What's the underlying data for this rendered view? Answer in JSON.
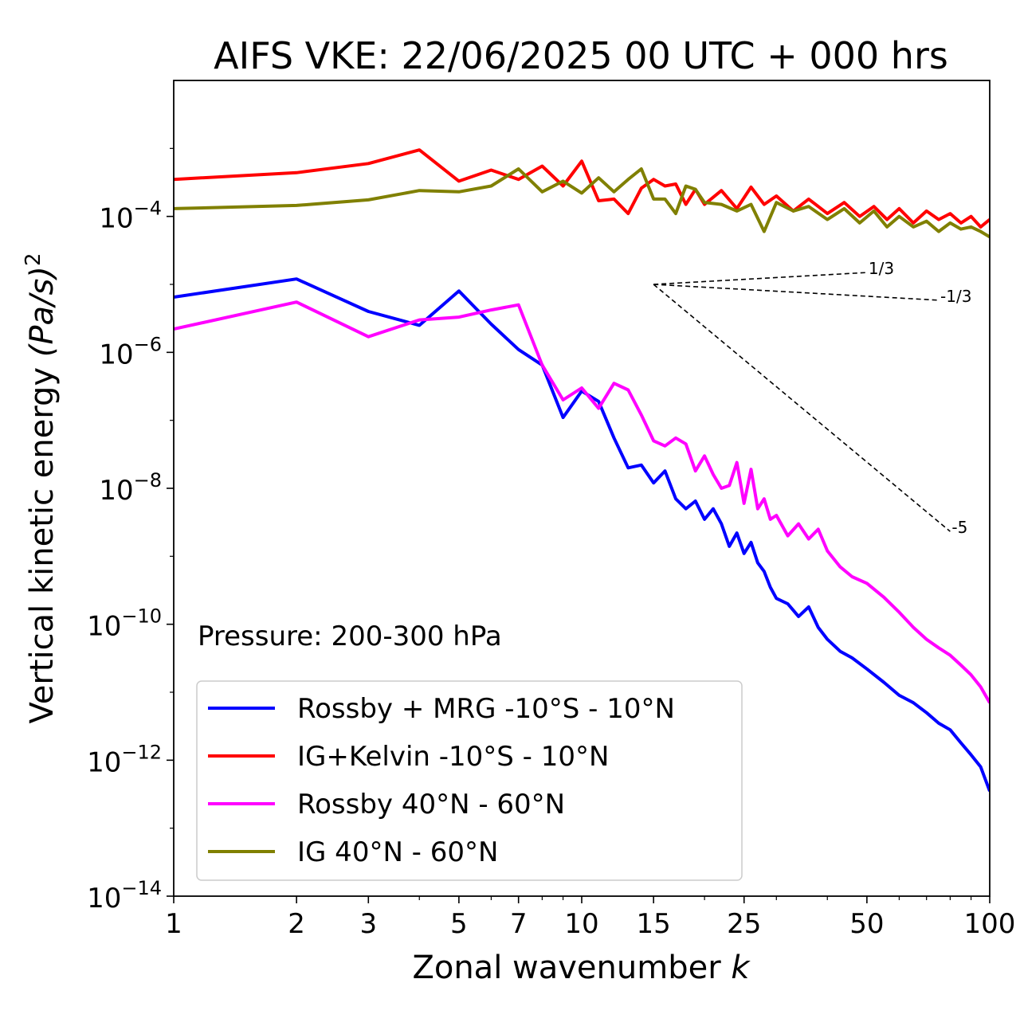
{
  "chart_data": {
    "type": "line",
    "title": "AIFS VKE: 22/06/2025 00 UTC + 000 hrs",
    "xlabel": "Zonal wavenumber",
    "xlabel_var": "k",
    "ylabel": "Vertical kinetic energy",
    "ylabel_unit": "(Pa/s)",
    "ylabel_power": "2",
    "xscale": "log",
    "yscale": "log",
    "xlim": [
      1,
      100
    ],
    "ylim": [
      1e-14,
      0.01
    ],
    "x_ticks": [
      1,
      2,
      3,
      5,
      7,
      10,
      15,
      25,
      50,
      100
    ],
    "x_tick_labels": [
      "1",
      "2",
      "3",
      "5",
      "7",
      "10",
      "15",
      "25",
      "50",
      "100"
    ],
    "y_ticks": [
      -14,
      -12,
      -10,
      -8,
      -6,
      -4
    ],
    "y_tick_base": "10",
    "y_tick_exps": [
      "−14",
      "−12",
      "−10",
      "−8",
      "−6",
      "−4"
    ],
    "annotation": "Pressure: 200-300 hPa",
    "legend_position": "lower-left",
    "grid": false,
    "series": [
      {
        "name": "Rossby + MRG -10°S - 10°N",
        "color": "#0000ff",
        "x": [
          1,
          2,
          3,
          4,
          5,
          6,
          7,
          8,
          9,
          10,
          11,
          12,
          13,
          14,
          15,
          16,
          17,
          18,
          19,
          20,
          21,
          22,
          23,
          24,
          25,
          26,
          27,
          28,
          29,
          30,
          32,
          34,
          36,
          38,
          40,
          43,
          46,
          50,
          55,
          60,
          65,
          70,
          75,
          80,
          85,
          90,
          95,
          100
        ],
        "y": [
          6.5e-06,
          1.2e-05,
          4e-06,
          2.5e-06,
          8e-06,
          2.6e-06,
          1.1e-06,
          6.5e-07,
          1.1e-07,
          2.7e-07,
          1.9e-07,
          5.5e-08,
          2e-08,
          2.2e-08,
          1.2e-08,
          1.8e-08,
          7e-09,
          5e-09,
          6.5e-09,
          3.5e-09,
          5e-09,
          3e-09,
          1.4e-09,
          2.2e-09,
          1.1e-09,
          1.6e-09,
          8e-10,
          6e-10,
          3.5e-10,
          2.4e-10,
          2e-10,
          1.3e-10,
          1.8e-10,
          9e-11,
          6e-11,
          4e-11,
          3.2e-11,
          2.2e-11,
          1.4e-11,
          9e-12,
          7e-12,
          5e-12,
          3.5e-12,
          2.8e-12,
          1.8e-12,
          1.2e-12,
          8e-13,
          3.5e-13
        ]
      },
      {
        "name": "IG+Kelvin -10°S - 10°N",
        "color": "#ff0000",
        "x": [
          1,
          2,
          3,
          4,
          5,
          6,
          7,
          8,
          9,
          10,
          11,
          12,
          13,
          14,
          15,
          16,
          17,
          18,
          19,
          20,
          22,
          24,
          26,
          28,
          30,
          33,
          36,
          40,
          44,
          48,
          52,
          56,
          60,
          65,
          70,
          75,
          80,
          85,
          90,
          95,
          100
        ],
        "y": [
          0.00035,
          0.00044,
          0.0006,
          0.00095,
          0.00033,
          0.00048,
          0.00035,
          0.00055,
          0.00028,
          0.00065,
          0.00017,
          0.00018,
          0.00011,
          0.00026,
          0.00035,
          0.00028,
          0.0003,
          0.00015,
          0.00025,
          0.00015,
          0.00024,
          0.00013,
          0.00027,
          0.00015,
          0.0002,
          0.00012,
          0.00018,
          0.00011,
          0.00016,
          0.0001,
          0.00014,
          9e-05,
          0.00013,
          8e-05,
          0.00012,
          9e-05,
          0.00011,
          8e-05,
          0.0001,
          7e-05,
          9e-05
        ]
      },
      {
        "name": "Rossby 40°N - 60°N",
        "color": "#ff00ff",
        "x": [
          1,
          2,
          3,
          4,
          5,
          6,
          7,
          8,
          9,
          10,
          11,
          12,
          13,
          14,
          15,
          16,
          17,
          18,
          19,
          20,
          21,
          22,
          23,
          24,
          25,
          26,
          27,
          28,
          29,
          30,
          32,
          34,
          36,
          38,
          40,
          43,
          46,
          50,
          55,
          60,
          65,
          70,
          75,
          80,
          85,
          90,
          95,
          100
        ],
        "y": [
          2.2e-06,
          5.5e-06,
          1.7e-06,
          3e-06,
          3.3e-06,
          4.2e-06,
          5e-06,
          6.5e-07,
          2e-07,
          3e-07,
          1.5e-07,
          3.5e-07,
          2.8e-07,
          1.2e-07,
          5e-08,
          4.2e-08,
          5.5e-08,
          4.5e-08,
          1.8e-08,
          3e-08,
          1.6e-08,
          1e-08,
          1.1e-08,
          2.4e-08,
          6e-09,
          1.9e-08,
          5e-09,
          7e-09,
          3.5e-09,
          4e-09,
          2e-09,
          3e-09,
          1.8e-09,
          2.5e-09,
          1.2e-09,
          7e-10,
          5e-10,
          4e-10,
          2.5e-10,
          1.5e-10,
          9e-11,
          6e-11,
          4.5e-11,
          3.5e-11,
          2.5e-11,
          1.8e-11,
          1.2e-11,
          7e-12
        ]
      },
      {
        "name": "IG 40°N - 60°N",
        "color": "#808000",
        "x": [
          1,
          2,
          3,
          4,
          5,
          6,
          7,
          8,
          9,
          10,
          11,
          12,
          13,
          14,
          15,
          16,
          17,
          18,
          19,
          20,
          22,
          24,
          26,
          28,
          30,
          33,
          36,
          40,
          44,
          48,
          52,
          56,
          60,
          65,
          70,
          75,
          80,
          85,
          90,
          95,
          100
        ],
        "y": [
          0.00013,
          0.000145,
          0.000175,
          0.00024,
          0.00023,
          0.00028,
          0.0005,
          0.00023,
          0.00033,
          0.00022,
          0.00037,
          0.00023,
          0.00035,
          0.0005,
          0.00018,
          0.00018,
          0.00011,
          0.00028,
          0.00025,
          0.00016,
          0.00015,
          0.00012,
          0.00015,
          6e-05,
          0.00016,
          0.00012,
          0.00014,
          9e-05,
          0.00013,
          8e-05,
          0.00012,
          7e-05,
          0.0001,
          7e-05,
          8.5e-05,
          6e-05,
          8e-05,
          6.5e-05,
          7e-05,
          6e-05,
          5e-05
        ]
      }
    ],
    "reference_slopes": [
      {
        "label": "1/3",
        "slope": 0.3333,
        "x0": 15,
        "x1": 50,
        "y0": 1e-05
      },
      {
        "label": "-1/3",
        "slope": -0.3333,
        "x0": 15,
        "x1": 75,
        "y0": 1e-05
      },
      {
        "label": "-5",
        "slope": -5,
        "x0": 15,
        "x1": 80,
        "y0": 1e-05
      }
    ]
  }
}
